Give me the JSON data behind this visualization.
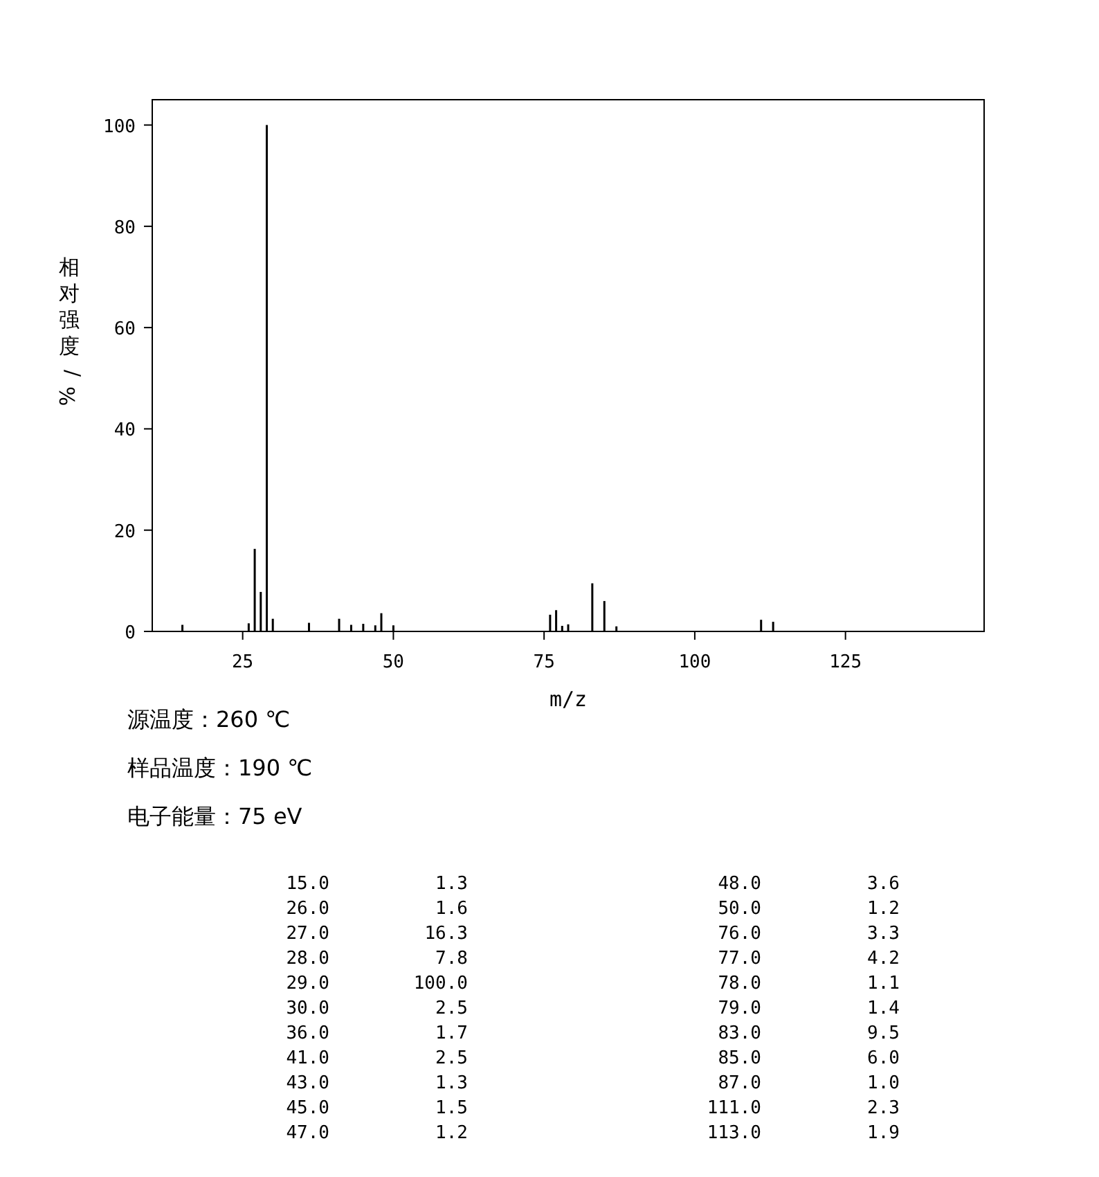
{
  "chart_data": [
    {
      "type": "bar",
      "xlabel": "m/z",
      "ylabel": "相对强度/%",
      "x": [
        15,
        26,
        27,
        28,
        29,
        30,
        36,
        41,
        43,
        45,
        47,
        48,
        50,
        76,
        77,
        78,
        79,
        83,
        85,
        87,
        111,
        113
      ],
      "values": [
        1.3,
        1.6,
        16.3,
        7.8,
        100.0,
        2.5,
        1.7,
        2.5,
        1.3,
        1.5,
        1.2,
        3.6,
        1.2,
        3.3,
        4.2,
        1.1,
        1.4,
        9.5,
        6.0,
        1.0,
        2.3,
        1.9
      ],
      "color": "#000000",
      "xlim": [
        10,
        148
      ],
      "ylim": [
        0,
        105
      ],
      "xticks": [
        25,
        50,
        75,
        100,
        125
      ],
      "yticks": [
        0,
        20,
        40,
        60,
        80,
        100
      ],
      "annotations": [
        "源温度：260 ℃",
        "样品温度：190 ℃",
        "电子能量：75 eV"
      ]
    },
    {
      "type": "other",
      "categories": [
        "15.0",
        "26.0",
        "27.0",
        "28.0",
        "29.0",
        "30.0",
        "36.0",
        "41.0",
        "43.0",
        "45.0",
        "47.0",
        "48.0",
        "50.0",
        "76.0",
        "77.0",
        "78.0",
        "79.0",
        "83.0",
        "85.0",
        "87.0",
        "111.0",
        "113.0"
      ],
      "values": [
        1.3,
        1.6,
        16.3,
        7.8,
        100.0,
        2.5,
        1.7,
        2.5,
        1.3,
        1.5,
        1.2,
        3.6,
        1.2,
        3.3,
        4.2,
        1.1,
        1.4,
        9.5,
        6.0,
        1.0,
        2.3,
        1.9
      ],
      "value_labels": [
        "1.3",
        "1.6",
        "16.3",
        "7.8",
        "100.0",
        "2.5",
        "1.7",
        "2.5",
        "1.3",
        "1.5",
        "1.2",
        "3.6",
        "1.2",
        "3.3",
        "4.2",
        "1.1",
        "1.4",
        "9.5",
        "6.0",
        "1.0",
        "2.3",
        "1.9"
      ]
    }
  ]
}
